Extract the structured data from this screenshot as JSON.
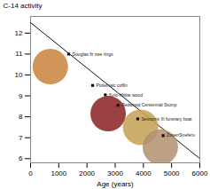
{
  "chart_data": {
    "type": "scatter",
    "xlabel": "Age (years)",
    "ylabel": "C-14 activity",
    "xlim": [
      0,
      6000
    ],
    "ylim": [
      5.8,
      12.8
    ],
    "xticks": [
      0,
      1000,
      2000,
      3000,
      4000,
      5000,
      6000
    ],
    "yticks": [
      6,
      7,
      8,
      9,
      10,
      11,
      12
    ],
    "series": [
      {
        "type": "line",
        "color": "#111111",
        "x": [
          0,
          6000
        ],
        "values": [
          12.5,
          6.002
        ]
      },
      {
        "type": "scatter",
        "marker": "circle",
        "colors": [
          "#c8823a",
          "#8b2020",
          "#c4a050",
          "#b09070"
        ],
        "x": [
          700,
          2750,
          3900,
          4600
        ],
        "values": [
          10.4,
          8.15,
          7.5,
          6.55
        ]
      },
      {
        "type": "scatter",
        "marker": "square",
        "color": "#111111",
        "x": [
          1350,
          2200,
          2650,
          3100,
          3800,
          4700
        ],
        "values": [
          11.0,
          9.5,
          9.05,
          8.55,
          7.9,
          7.1
        ],
        "labels": [
          "Douglas fir tree rings",
          "Ptolemaic coffin",
          "Syro-Hittite wood",
          "Redwood Centennial Stump",
          "Sesostris III funerary boat",
          "Zoser/Sneferu"
        ]
      }
    ]
  }
}
